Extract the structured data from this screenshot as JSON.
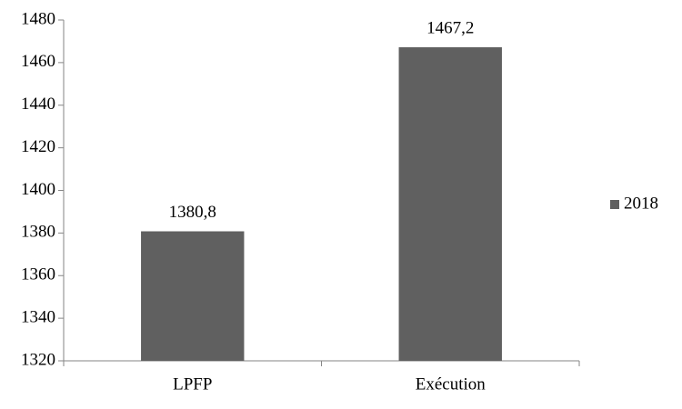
{
  "chart_data": {
    "type": "bar",
    "categories": [
      "LPFP",
      "Exécution"
    ],
    "series": [
      {
        "name": "2018",
        "color": "#606060",
        "values": [
          1380.8,
          1467.2
        ],
        "value_labels": [
          "1380,8",
          "1467,2"
        ]
      }
    ],
    "ylim": [
      1320,
      1480
    ],
    "yticks": [
      1320,
      1340,
      1360,
      1380,
      1400,
      1420,
      1440,
      1460,
      1480
    ],
    "grid": false,
    "legend": "right"
  }
}
